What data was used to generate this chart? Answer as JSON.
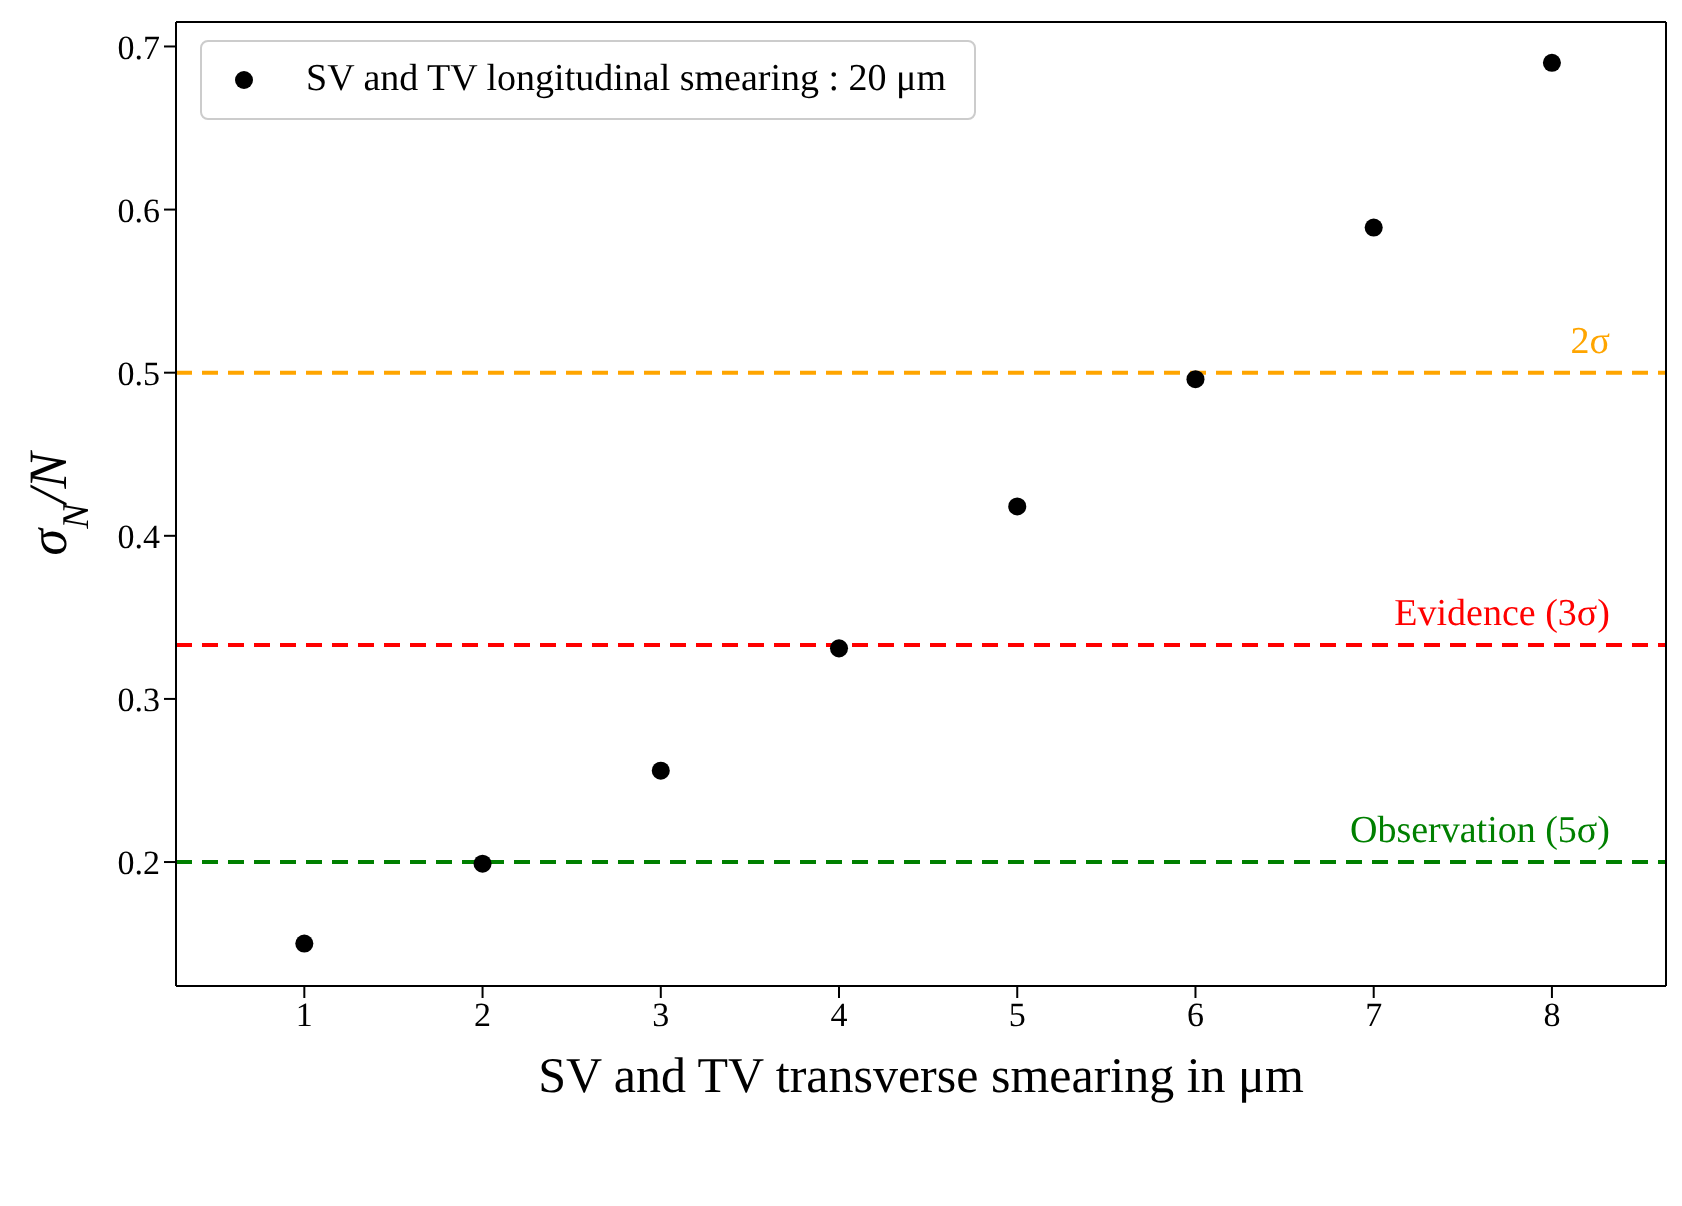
{
  "chart_data": {
    "type": "scatter",
    "xlabel": "SV and TV transverse smearing in μm",
    "ylabel": "σ$_{N}$/N",
    "x": [
      1,
      2,
      3,
      4,
      5,
      6,
      7,
      8
    ],
    "series": [
      {
        "name": "SV and TV longitudinal smearing : 20 μm",
        "color": "#000000",
        "values": [
          0.15,
          0.199,
          0.256,
          0.331,
          0.418,
          0.496,
          0.589,
          0.69
        ]
      }
    ],
    "xlim": [
      0.28,
      8.64
    ],
    "xticks": [
      1,
      2,
      3,
      4,
      5,
      6,
      7,
      8
    ],
    "ylim": [
      0.124,
      0.715
    ],
    "yticks": [
      0.2,
      0.3,
      0.4,
      0.5,
      0.6,
      0.7
    ],
    "ref_lines": [
      {
        "axis": "y",
        "value": 0.5,
        "label": "2σ",
        "color": "#ffa500",
        "line_style": "dashed"
      },
      {
        "axis": "y",
        "value": 0.333,
        "label": "Evidence (3σ)",
        "color": "#ff0000",
        "line_style": "dashed"
      },
      {
        "axis": "y",
        "value": 0.2,
        "label": "Observation (5σ)",
        "color": "#008000",
        "line_style": "dashed"
      }
    ],
    "legend": "top left",
    "marker": "circle",
    "grid": false
  }
}
